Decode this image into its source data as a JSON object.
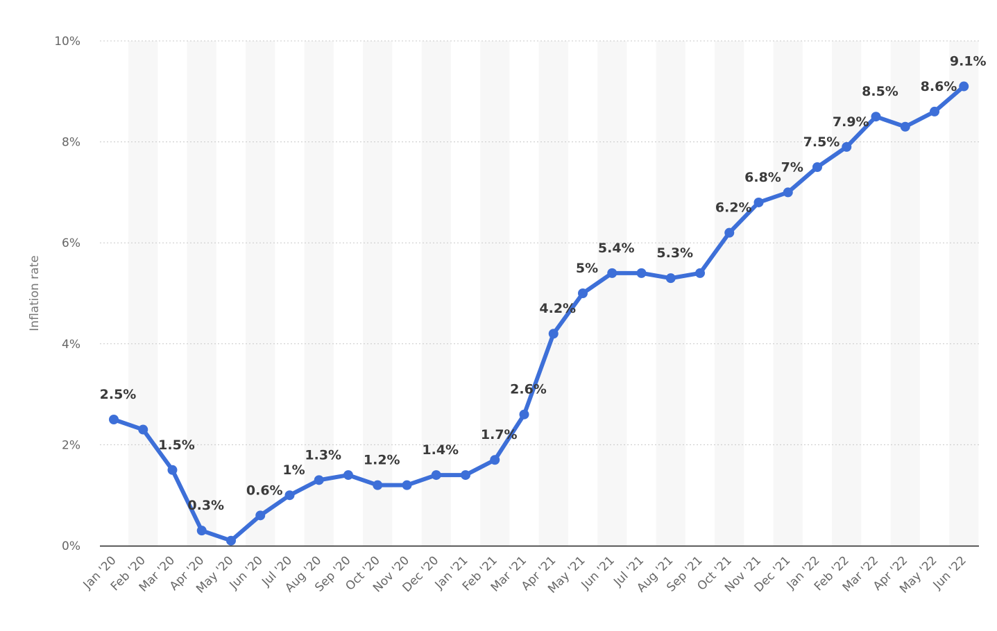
{
  "chart_data": {
    "type": "line",
    "title": "",
    "xlabel": "",
    "ylabel": "Inflation rate",
    "ylim": [
      0,
      10
    ],
    "yticks": [
      0,
      2,
      4,
      6,
      8,
      10
    ],
    "ytick_labels": [
      "0%",
      "2%",
      "4%",
      "6%",
      "8%",
      "10%"
    ],
    "grid": true,
    "legend": "none",
    "categories": [
      "Jan '20",
      "Feb '20",
      "Mar '20",
      "Apr '20",
      "May '20",
      "Jun '20",
      "Jul '20",
      "Aug '20",
      "Sep '20",
      "Oct '20",
      "Nov '20",
      "Dec '20",
      "Jan '21",
      "Feb '21",
      "Mar '21",
      "Apr '21",
      "May '21",
      "Jun '21",
      "Jul '21",
      "Aug '21",
      "Sep '21",
      "Oct '21",
      "Nov '21",
      "Dec '21",
      "Jan '22",
      "Feb '22",
      "Mar '22",
      "Apr '22",
      "May '22",
      "Jun '22"
    ],
    "series": [
      {
        "color": "#3d6fd8",
        "values": [
          2.5,
          2.3,
          1.5,
          0.3,
          0.1,
          0.6,
          1.0,
          1.3,
          1.4,
          1.2,
          1.2,
          1.4,
          1.4,
          1.7,
          2.6,
          4.2,
          5.0,
          5.4,
          5.4,
          5.3,
          5.4,
          6.2,
          6.8,
          7.0,
          7.5,
          7.9,
          8.5,
          8.3,
          8.6,
          9.1
        ]
      }
    ],
    "data_labels": [
      {
        "index": 0,
        "text": "2.5%"
      },
      {
        "index": 2,
        "text": "1.5%"
      },
      {
        "index": 3,
        "text": "0.3%"
      },
      {
        "index": 5,
        "text": "0.6%"
      },
      {
        "index": 6,
        "text": "1%"
      },
      {
        "index": 7,
        "text": "1.3%"
      },
      {
        "index": 9,
        "text": "1.2%"
      },
      {
        "index": 11,
        "text": "1.4%"
      },
      {
        "index": 13,
        "text": "1.7%"
      },
      {
        "index": 14,
        "text": "2.6%"
      },
      {
        "index": 15,
        "text": "4.2%"
      },
      {
        "index": 16,
        "text": "5%"
      },
      {
        "index": 17,
        "text": "5.4%"
      },
      {
        "index": 19,
        "text": "5.3%"
      },
      {
        "index": 21,
        "text": "6.2%"
      },
      {
        "index": 22,
        "text": "6.8%"
      },
      {
        "index": 23,
        "text": "7%"
      },
      {
        "index": 24,
        "text": "7.5%"
      },
      {
        "index": 25,
        "text": "7.9%"
      },
      {
        "index": 26,
        "text": "8.5%"
      },
      {
        "index": 28,
        "text": "8.6%"
      },
      {
        "index": 29,
        "text": "9.1%"
      }
    ]
  }
}
